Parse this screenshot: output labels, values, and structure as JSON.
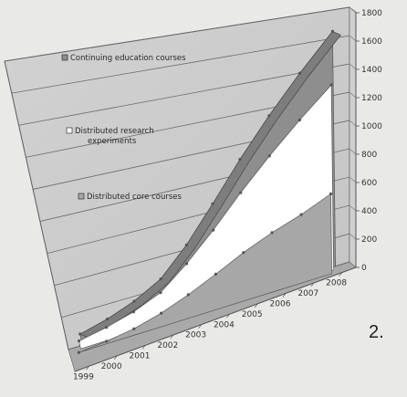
{
  "figure_number": "2.",
  "chart_data": {
    "type": "area",
    "projection": "3d-perspective",
    "categories": [
      "1999",
      "2000",
      "2001",
      "2002",
      "2003",
      "2004",
      "2005",
      "2006",
      "2007",
      "2008"
    ],
    "yticks": [
      "0",
      "200",
      "400",
      "600",
      "800",
      "1000",
      "1200",
      "1400",
      "1600",
      "1800"
    ],
    "ylim": [
      0,
      1800
    ],
    "grid": true,
    "legend_position": "left",
    "series": [
      {
        "name": "Continuing education courses",
        "color": "#8e8e8e",
        "values": [
          70,
          110,
          170,
          260,
          430,
          650,
          900,
          1150,
          1400,
          1650
        ]
      },
      {
        "name": "Distributed research experiments",
        "color": "#ffffff",
        "values": [
          50,
          80,
          125,
          195,
          330,
          500,
          700,
          900,
          1100,
          1300
        ]
      },
      {
        "name": "Distributed core courses",
        "color": "#a7a7a7",
        "values": [
          0,
          15,
          40,
          85,
          150,
          230,
          320,
          400,
          470,
          560
        ]
      }
    ]
  }
}
